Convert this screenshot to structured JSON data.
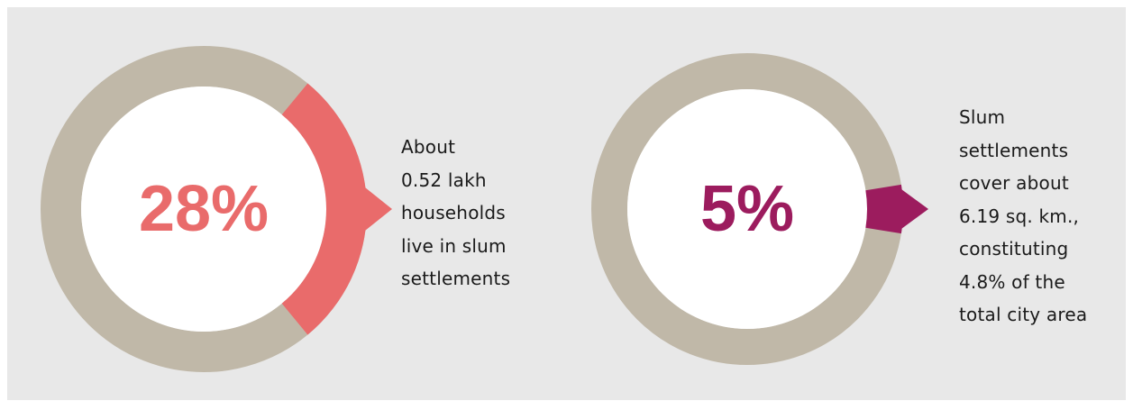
{
  "chart_data": [
    {
      "type": "pie",
      "value_percent": 28,
      "center_label": "28%",
      "description_lines": [
        "About",
        "0.52 lakh",
        "households",
        "live in slum",
        "settlements"
      ],
      "highlight_color": "#e96b6b",
      "base_color": "#c0b8a8"
    },
    {
      "type": "pie",
      "value_percent": 5,
      "center_label": "5%",
      "description_lines": [
        "Slum",
        "settlements",
        "cover about",
        "6.19 sq. km.,",
        "constituting",
        "4.8% of the",
        "total city area"
      ],
      "highlight_color": "#9c1c5e",
      "base_color": "#c0b8a8"
    }
  ]
}
